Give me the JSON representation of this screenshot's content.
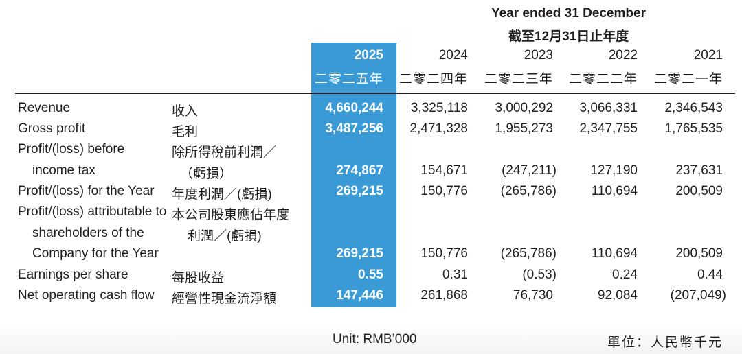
{
  "header": {
    "title_en": "Year ended 31 December",
    "title_zh": "截至12月31日止年度"
  },
  "years": [
    {
      "year": "2025",
      "zh": "二零二五年"
    },
    {
      "year": "2024",
      "zh": "二零二四年"
    },
    {
      "year": "2023",
      "zh": "二零二三年"
    },
    {
      "year": "2022",
      "zh": "二零二二年"
    },
    {
      "year": "2021",
      "zh": "二零二一年"
    }
  ],
  "rows": [
    {
      "en": [
        "Revenue"
      ],
      "zh": [
        "收入"
      ],
      "values": [
        "4,660,244",
        "3,325,118",
        "3,000,292",
        "3,066,331",
        "2,346,543"
      ]
    },
    {
      "en": [
        "Gross profit"
      ],
      "zh": [
        "毛利"
      ],
      "values": [
        "3,487,256",
        "2,471,328",
        "1,955,273",
        "2,347,755",
        "1,765,535"
      ]
    },
    {
      "en": [
        "Profit/(loss) before",
        "income tax"
      ],
      "zh": [
        "除所得稅前利潤／",
        "（虧損）"
      ],
      "values": [
        "274,867",
        "154,671",
        "(247,211)",
        "127,190",
        "237,631"
      ]
    },
    {
      "en": [
        "Profit/(loss) for the Year"
      ],
      "zh": [
        "年度利潤／(虧損)"
      ],
      "values": [
        "269,215",
        "150,776",
        "(265,786)",
        "110,694",
        "200,509"
      ]
    },
    {
      "en": [
        "Profit/(loss) attributable to",
        "shareholders of the",
        "Company for the Year"
      ],
      "zh": [
        "本公司股東應佔年度",
        "利潤／(虧損)"
      ],
      "values": [
        "269,215",
        "150,776",
        "(265,786)",
        "110,694",
        "200,509"
      ]
    },
    {
      "en": [
        "Earnings per share"
      ],
      "zh": [
        "每股收益"
      ],
      "values": [
        "0.55",
        "0.31",
        "(0.53)",
        "0.24",
        "0.44"
      ]
    },
    {
      "en": [
        "Net operating cash flow"
      ],
      "zh": [
        "經營性現金流淨額"
      ],
      "values": [
        "147,446",
        "261,868",
        "76,730",
        "92,084",
        "(207,049)"
      ]
    }
  ],
  "footer": {
    "unit_en": "Unit: RMB’000",
    "unit_zh": "單位：人民幣千元"
  }
}
